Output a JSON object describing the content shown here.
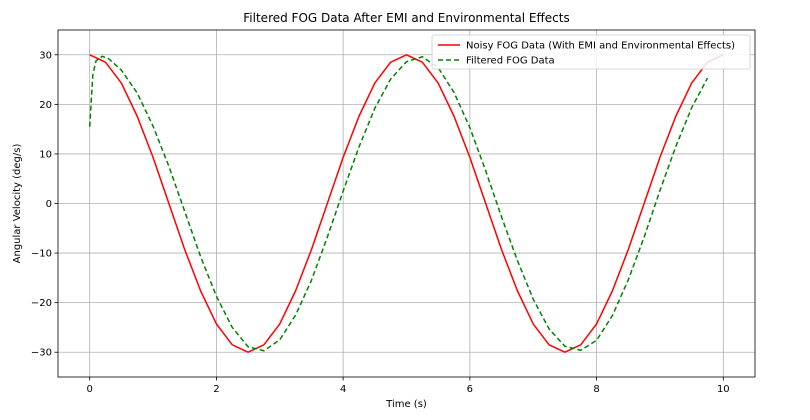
{
  "chart_data": {
    "type": "line",
    "title": "Filtered FOG Data After EMI and Environmental Effects",
    "xlabel": "Time (s)",
    "ylabel": "Angular Velocity (deg/s)",
    "xlim": [
      -0.5,
      10.5
    ],
    "ylim": [
      -35,
      35
    ],
    "xticks": [
      0,
      2,
      4,
      6,
      8,
      10
    ],
    "yticks": [
      -30,
      -20,
      -10,
      0,
      10,
      20,
      30
    ],
    "grid": true,
    "legend_position": "top-right",
    "series": [
      {
        "name": "Noisy FOG Data (With EMI and Environmental Effects)",
        "color": "#ff0000",
        "style": "solid",
        "x": [
          0.0,
          0.25,
          0.5,
          0.75,
          1.0,
          1.25,
          1.5,
          1.75,
          2.0,
          2.25,
          2.5,
          2.75,
          3.0,
          3.25,
          3.5,
          3.75,
          4.0,
          4.25,
          4.5,
          4.75,
          5.0,
          5.25,
          5.5,
          5.75,
          6.0,
          6.25,
          6.5,
          6.75,
          7.0,
          7.25,
          7.5,
          7.75,
          8.0,
          8.25,
          8.5,
          8.75,
          9.0,
          9.25,
          9.5,
          9.75,
          10.0
        ],
        "values": [
          30.0,
          28.5,
          24.3,
          17.6,
          9.3,
          0.0,
          -9.3,
          -17.6,
          -24.3,
          -28.5,
          -30.0,
          -28.5,
          -24.3,
          -17.6,
          -9.3,
          0.0,
          9.3,
          17.6,
          24.3,
          28.5,
          30.0,
          28.5,
          24.3,
          17.6,
          9.3,
          0.0,
          -9.3,
          -17.6,
          -24.3,
          -28.5,
          -30.0,
          -28.5,
          -24.3,
          -17.6,
          -9.3,
          0.0,
          9.3,
          17.6,
          24.3,
          28.5,
          30.0
        ]
      },
      {
        "name": "Filtered FOG Data",
        "color": "#008000",
        "style": "dashed",
        "x": [
          0.0,
          0.05,
          0.1,
          0.2,
          0.3,
          0.5,
          0.75,
          1.0,
          1.25,
          1.5,
          1.75,
          2.0,
          2.25,
          2.5,
          2.75,
          3.0,
          3.25,
          3.5,
          3.75,
          4.0,
          4.25,
          4.5,
          4.75,
          5.0,
          5.25,
          5.5,
          5.75,
          6.0,
          6.25,
          6.5,
          6.75,
          7.0,
          7.25,
          7.5,
          7.75,
          8.0,
          8.25,
          8.5,
          8.75,
          9.0,
          9.25,
          9.5,
          9.75
        ],
        "values": [
          15.5,
          26.0,
          28.8,
          29.7,
          29.2,
          26.9,
          22.3,
          15.6,
          7.5,
          -1.6,
          -10.7,
          -18.7,
          -25.0,
          -28.9,
          -29.7,
          -27.5,
          -22.5,
          -15.5,
          -6.8,
          2.5,
          11.4,
          19.2,
          25.1,
          28.6,
          29.6,
          27.4,
          22.4,
          15.3,
          6.6,
          -2.7,
          -11.5,
          -19.3,
          -25.3,
          -28.8,
          -29.6,
          -27.6,
          -22.6,
          -15.4,
          -6.8,
          2.6,
          11.5,
          19.3,
          25.3
        ]
      }
    ]
  }
}
